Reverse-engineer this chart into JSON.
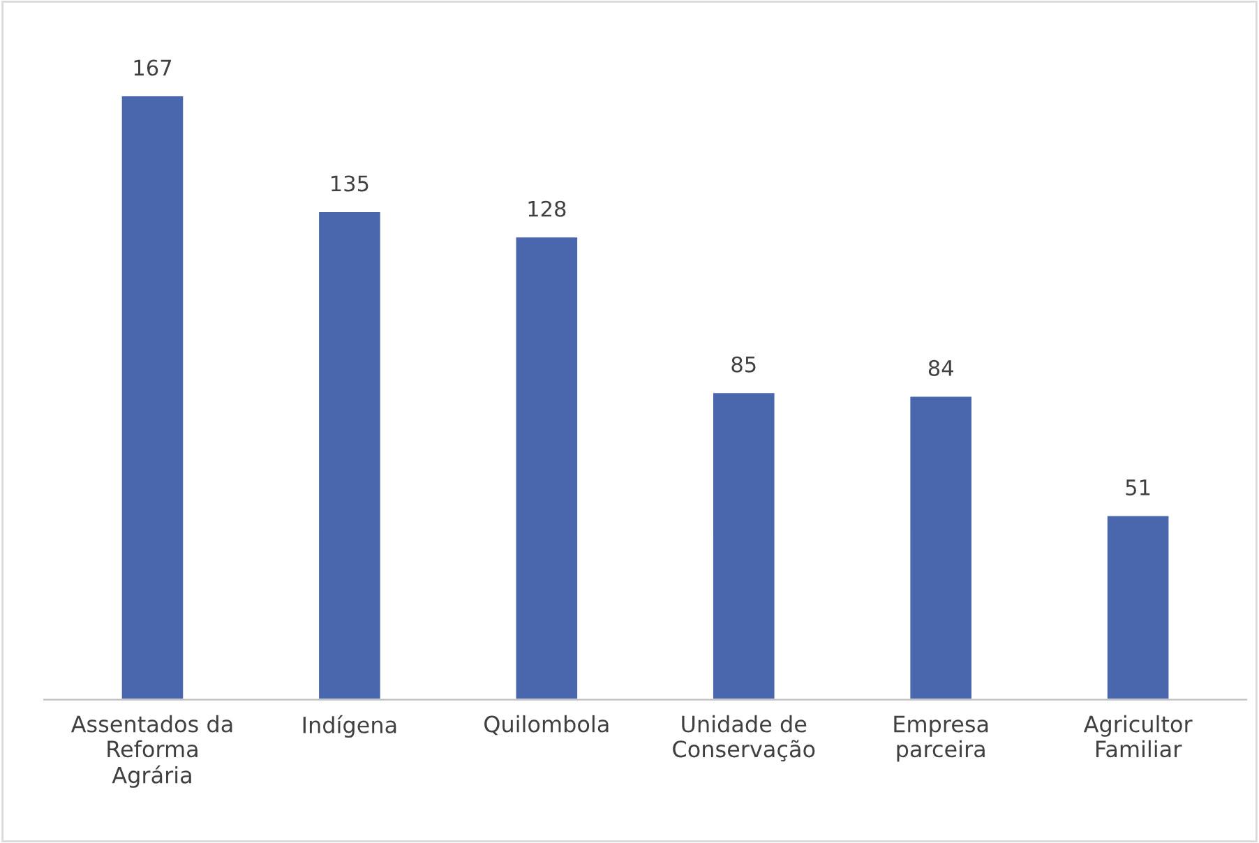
{
  "chart_data": {
    "type": "bar",
    "categories": [
      "Assentados da\nReforma\nAgrária",
      "Indígena",
      "Quilombola",
      "Unidade de\nConservação",
      "Empresa\nparceira",
      "Agricultor\nFamiliar"
    ],
    "values": [
      167,
      135,
      128,
      85,
      84,
      51
    ],
    "color": "#4a66ac",
    "data_labels": true,
    "grid": false,
    "legend": false
  }
}
